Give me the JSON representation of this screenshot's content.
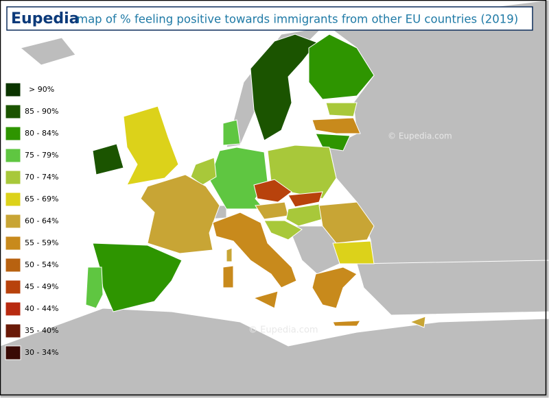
{
  "header": {
    "brand": "Eupedia",
    "title": "map of % feeling positive towards immigrants from other EU countries (2019)"
  },
  "legend": [
    {
      "label": "> 90%",
      "color": "#0b3500"
    },
    {
      "label": "85 - 90%",
      "color": "#1b5400"
    },
    {
      "label": "80 - 84%",
      "color": "#2e9500"
    },
    {
      "label": "75 - 79%",
      "color": "#5fc641"
    },
    {
      "label": "70 - 74%",
      "color": "#a8c83a"
    },
    {
      "label": "65 - 69%",
      "color": "#dcd21a"
    },
    {
      "label": "60 - 64%",
      "color": "#c8a535"
    },
    {
      "label": "55 - 59%",
      "color": "#c88a1c"
    },
    {
      "label": "50 - 54%",
      "color": "#b86210"
    },
    {
      "label": "45 - 49%",
      "color": "#b8420c"
    },
    {
      "label": "40 - 44%",
      "color": "#b82a10"
    },
    {
      "label": "35 - 40%",
      "color": "#6a1a08"
    },
    {
      "label": "30 - 34%",
      "color": "#3a0a05"
    }
  ],
  "watermarks": [
    "© Eupedia.com",
    "© Eupedia.com"
  ]
}
